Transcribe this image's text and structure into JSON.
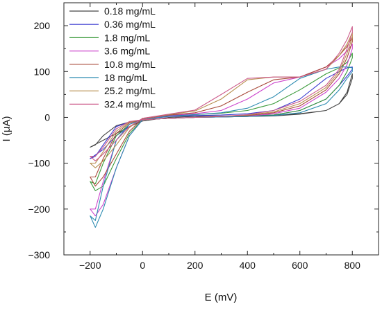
{
  "chart_data": {
    "type": "line",
    "subtype": "cyclic-voltammogram",
    "title": "",
    "xlabel": "E (mV)",
    "ylabel": "I (μA)",
    "xlim": [
      -300,
      900
    ],
    "ylim": [
      -300,
      250
    ],
    "xticks": [
      -200,
      0,
      200,
      400,
      600,
      800
    ],
    "yticks": [
      -300,
      -200,
      -100,
      0,
      100,
      200
    ],
    "xtick_labels": [
      "−200",
      "0",
      "200",
      "400",
      "600",
      "800"
    ],
    "ytick_labels": [
      "−300",
      "−200",
      "−100",
      "0",
      "100",
      "200"
    ],
    "grid": false,
    "legend_position": "top-left",
    "series": [
      {
        "name": "0.18 mg/mL",
        "color": "#444444",
        "x": [
          -200,
          -150,
          -100,
          -50,
          0,
          100,
          200,
          300,
          400,
          500,
          600,
          700,
          750,
          780,
          800,
          800,
          780,
          750,
          700,
          600,
          500,
          400,
          300,
          200,
          100,
          0,
          -50,
          -100,
          -150,
          -180,
          -200,
          -200
        ],
        "y": [
          -65,
          -50,
          -35,
          -20,
          -8,
          0,
          2,
          3,
          4,
          5,
          8,
          15,
          30,
          55,
          95,
          85,
          50,
          30,
          15,
          7,
          3,
          2,
          1,
          0,
          -2,
          -5,
          -10,
          -18,
          -40,
          -60,
          -65,
          -65
        ]
      },
      {
        "name": "0.36 mg/mL",
        "color": "#3a3ad0",
        "x": [
          -200,
          -150,
          -100,
          -50,
          0,
          100,
          200,
          300,
          400,
          500,
          600,
          700,
          750,
          780,
          800,
          800,
          780,
          750,
          700,
          600,
          500,
          400,
          300,
          200,
          100,
          0,
          -50,
          -100,
          -150,
          -180,
          -200,
          -200
        ],
        "y": [
          -90,
          -70,
          -40,
          -20,
          -5,
          2,
          4,
          5,
          8,
          15,
          40,
          85,
          100,
          108,
          110,
          105,
          90,
          70,
          40,
          15,
          5,
          2,
          1,
          0,
          -2,
          -5,
          -10,
          -20,
          -60,
          -85,
          -90,
          -90
        ]
      },
      {
        "name": "1.8 mg/mL",
        "color": "#3a9a3a",
        "x": [
          -200,
          -180,
          -150,
          -100,
          -50,
          0,
          100,
          200,
          300,
          400,
          500,
          600,
          700,
          750,
          780,
          800,
          800,
          780,
          750,
          700,
          600,
          500,
          400,
          300,
          200,
          100,
          0,
          -50,
          -100,
          -150,
          -180,
          -200
        ],
        "y": [
          -140,
          -160,
          -150,
          -90,
          -35,
          -5,
          3,
          6,
          9,
          15,
          30,
          60,
          95,
          108,
          120,
          140,
          130,
          100,
          70,
          40,
          15,
          5,
          2,
          1,
          0,
          -2,
          -5,
          -15,
          -40,
          -100,
          -145,
          -140
        ]
      },
      {
        "name": "3.6 mg/mL",
        "color": "#cc44cc",
        "x": [
          -200,
          -180,
          -150,
          -100,
          -50,
          0,
          100,
          200,
          300,
          400,
          500,
          600,
          700,
          750,
          780,
          800,
          800,
          780,
          750,
          700,
          600,
          500,
          400,
          300,
          200,
          100,
          0,
          -50,
          -100,
          -150,
          -180,
          -200
        ],
        "y": [
          -200,
          -215,
          -190,
          -110,
          -40,
          -5,
          4,
          8,
          15,
          40,
          75,
          88,
          110,
          128,
          145,
          160,
          150,
          115,
          85,
          55,
          20,
          8,
          3,
          1,
          0,
          -2,
          -5,
          -15,
          -50,
          -140,
          -200,
          -200
        ]
      },
      {
        "name": "10.8 mg/mL",
        "color": "#a84a3a",
        "x": [
          -200,
          -180,
          -150,
          -100,
          -50,
          0,
          100,
          200,
          300,
          400,
          500,
          600,
          700,
          750,
          780,
          800,
          800,
          780,
          750,
          700,
          600,
          500,
          400,
          300,
          200,
          100,
          0,
          -50,
          -100,
          -150,
          -180,
          -200
        ],
        "y": [
          -130,
          -150,
          -130,
          -80,
          -30,
          -3,
          5,
          10,
          25,
          55,
          82,
          88,
          110,
          135,
          155,
          175,
          165,
          130,
          95,
          60,
          25,
          10,
          4,
          2,
          0,
          -2,
          -5,
          -12,
          -35,
          -90,
          -130,
          -130
        ]
      },
      {
        "name": "18 mg/mL",
        "color": "#2a8ab0",
        "x": [
          -200,
          -180,
          -150,
          -100,
          -50,
          0,
          100,
          200,
          300,
          400,
          500,
          600,
          700,
          750,
          780,
          800,
          800,
          780,
          750,
          700,
          600,
          500,
          400,
          300,
          200,
          100,
          0,
          -50,
          -100,
          -150,
          -180,
          -200
        ],
        "y": [
          -215,
          -240,
          -200,
          -110,
          -40,
          -5,
          3,
          6,
          10,
          20,
          45,
          85,
          105,
          110,
          110,
          108,
          100,
          85,
          60,
          30,
          10,
          4,
          2,
          1,
          0,
          -2,
          -5,
          -15,
          -50,
          -150,
          -225,
          -215
        ]
      },
      {
        "name": "25.2 mg/mL",
        "color": "#b89050",
        "x": [
          -200,
          -180,
          -150,
          -100,
          -50,
          0,
          100,
          200,
          300,
          400,
          500,
          600,
          700,
          750,
          780,
          800,
          800,
          780,
          750,
          700,
          600,
          500,
          400,
          300,
          200,
          100,
          0,
          -50,
          -100,
          -150,
          -180,
          -200
        ],
        "y": [
          -100,
          -110,
          -95,
          -60,
          -22,
          -2,
          6,
          14,
          40,
          82,
          88,
          88,
          105,
          135,
          160,
          185,
          175,
          140,
          100,
          65,
          30,
          12,
          5,
          2,
          0,
          -2,
          -5,
          -10,
          -30,
          -75,
          -100,
          -100
        ]
      },
      {
        "name": "32.4 mg/mL",
        "color": "#cc5a8a",
        "x": [
          -200,
          -180,
          -150,
          -100,
          -50,
          0,
          100,
          200,
          300,
          400,
          500,
          600,
          700,
          750,
          780,
          800,
          800,
          780,
          750,
          700,
          600,
          500,
          400,
          300,
          200,
          100,
          0,
          -50,
          -100,
          -150,
          -180,
          -200
        ],
        "y": [
          -85,
          -95,
          -80,
          -50,
          -20,
          -2,
          7,
          16,
          50,
          85,
          88,
          88,
          105,
          140,
          170,
          198,
          185,
          150,
          105,
          70,
          35,
          15,
          6,
          2,
          0,
          -2,
          -5,
          -9,
          -25,
          -65,
          -85,
          -85
        ]
      }
    ]
  }
}
